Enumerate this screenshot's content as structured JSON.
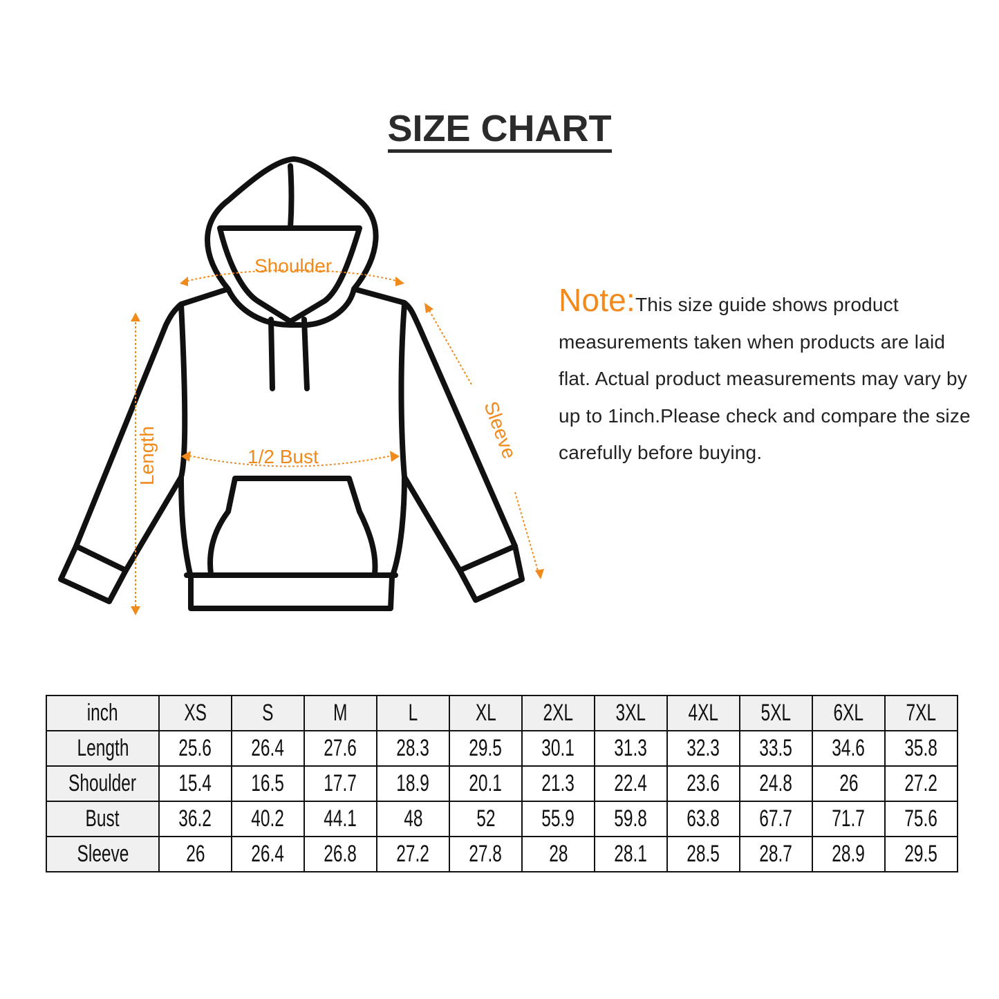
{
  "title": "SIZE CHART",
  "diagram": {
    "labels": {
      "shoulder": "Shoulder",
      "length": "Length",
      "bust": "1/2 Bust",
      "sleeve": "Sleeve"
    },
    "accent_color": "#f08a1c"
  },
  "note": {
    "label": "Note:",
    "text": "This size guide shows product measurements taken when products are laid flat. Actual product measurements may vary by up to 1inch.Please check and compare the size carefully before buying."
  },
  "table": {
    "header": [
      "inch",
      "XS",
      "S",
      "M",
      "L",
      "XL",
      "2XL",
      "3XL",
      "4XL",
      "5XL",
      "6XL",
      "7XL"
    ],
    "rows": [
      [
        "Length",
        "25.6",
        "26.4",
        "27.6",
        "28.3",
        "29.5",
        "30.1",
        "31.3",
        "32.3",
        "33.5",
        "34.6",
        "35.8"
      ],
      [
        "Shoulder",
        "15.4",
        "16.5",
        "17.7",
        "18.9",
        "20.1",
        "21.3",
        "22.4",
        "23.6",
        "24.8",
        "26",
        "27.2"
      ],
      [
        "Bust",
        "36.2",
        "40.2",
        "44.1",
        "48",
        "52",
        "55.9",
        "59.8",
        "63.8",
        "67.7",
        "71.7",
        "75.6"
      ],
      [
        "Sleeve",
        "26",
        "26.4",
        "26.8",
        "27.2",
        "27.8",
        "28",
        "28.1",
        "28.5",
        "28.7",
        "28.9",
        "29.5"
      ]
    ]
  }
}
